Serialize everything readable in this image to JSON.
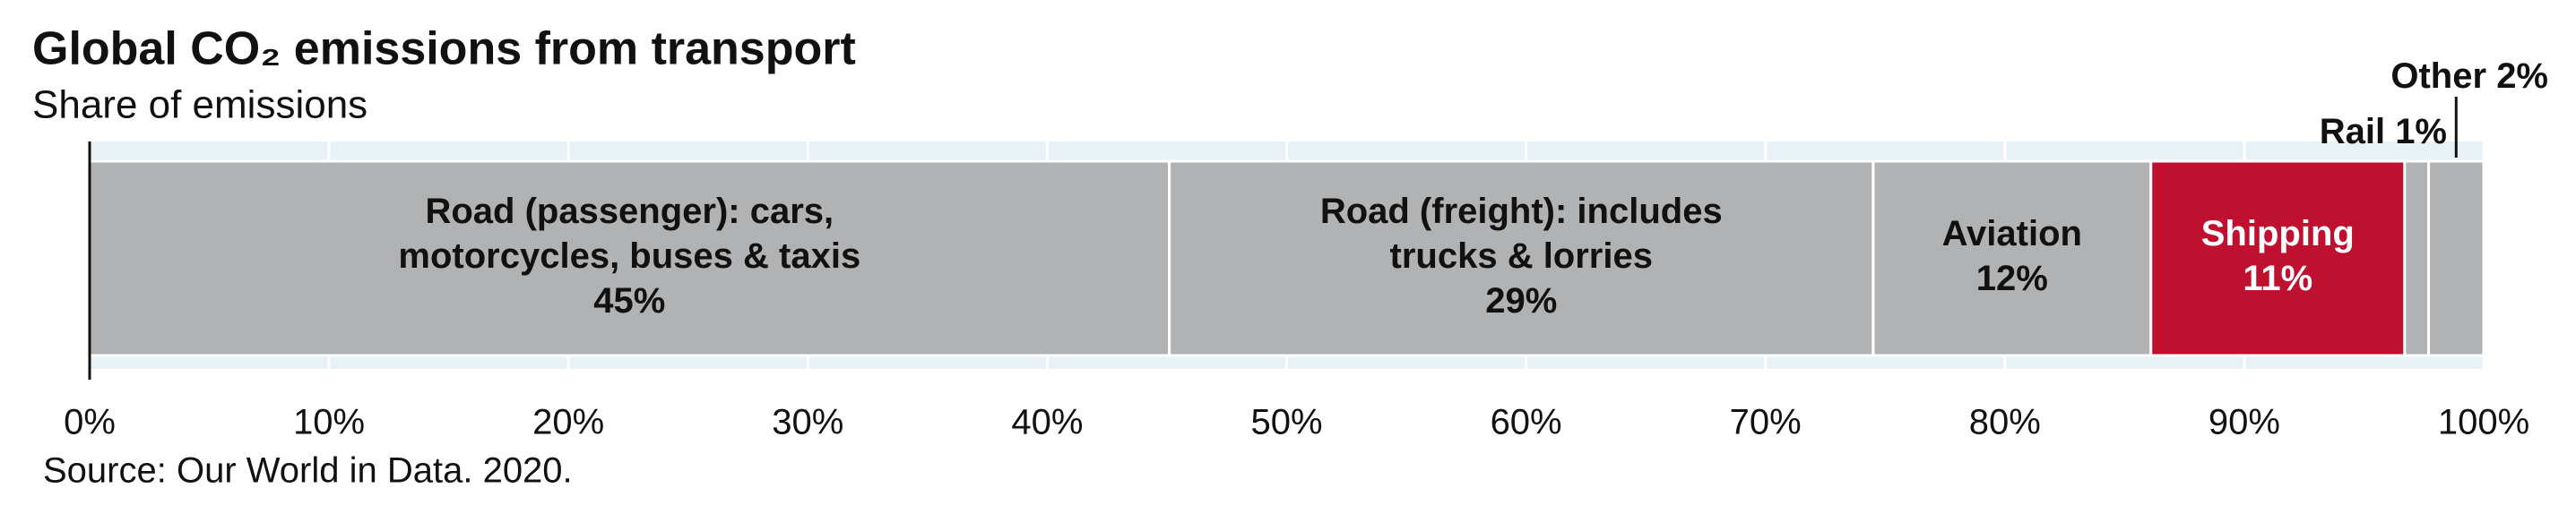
{
  "chart_data": {
    "type": "stacked-bar-horizontal",
    "title": "Global CO₂ emissions from transport",
    "subtitle": "Share of emissions",
    "source": "Source: Our World in Data. 2020.",
    "categories": [
      [
        "Road (passenger): cars,",
        "motorcycles, buses & taxis"
      ],
      [
        "Road (freight): includes",
        "trucks & lorries"
      ],
      [
        "Aviation"
      ],
      [
        "Shipping"
      ],
      [
        "Rail"
      ],
      [
        "Other"
      ]
    ],
    "values": [
      45.1,
      29.4,
      11.6,
      10.6,
      1.0,
      2.3
    ],
    "value_labels": [
      "45%",
      "29%",
      "12%",
      "11%",
      "1%",
      "2%"
    ],
    "colors": [
      "#b1b2b4",
      "#b1b2b4",
      "#b1b2b4",
      "#c0102f",
      "#b1b2b4",
      "#b1b2b4"
    ],
    "xlim": [
      0,
      100
    ],
    "xticks": [
      {
        "value": 0,
        "label": "0%"
      },
      {
        "value": 10,
        "label": "10%"
      },
      {
        "value": 20,
        "label": "20%"
      },
      {
        "value": 30,
        "label": "30%"
      },
      {
        "value": 40,
        "label": "40%"
      },
      {
        "value": 50,
        "label": "50%"
      },
      {
        "value": 60,
        "label": "60%"
      },
      {
        "value": 70,
        "label": "70%"
      },
      {
        "value": 80,
        "label": "80%"
      },
      {
        "value": 90,
        "label": "90%"
      },
      {
        "value": 100,
        "label": "100%"
      }
    ],
    "grid": true
  }
}
